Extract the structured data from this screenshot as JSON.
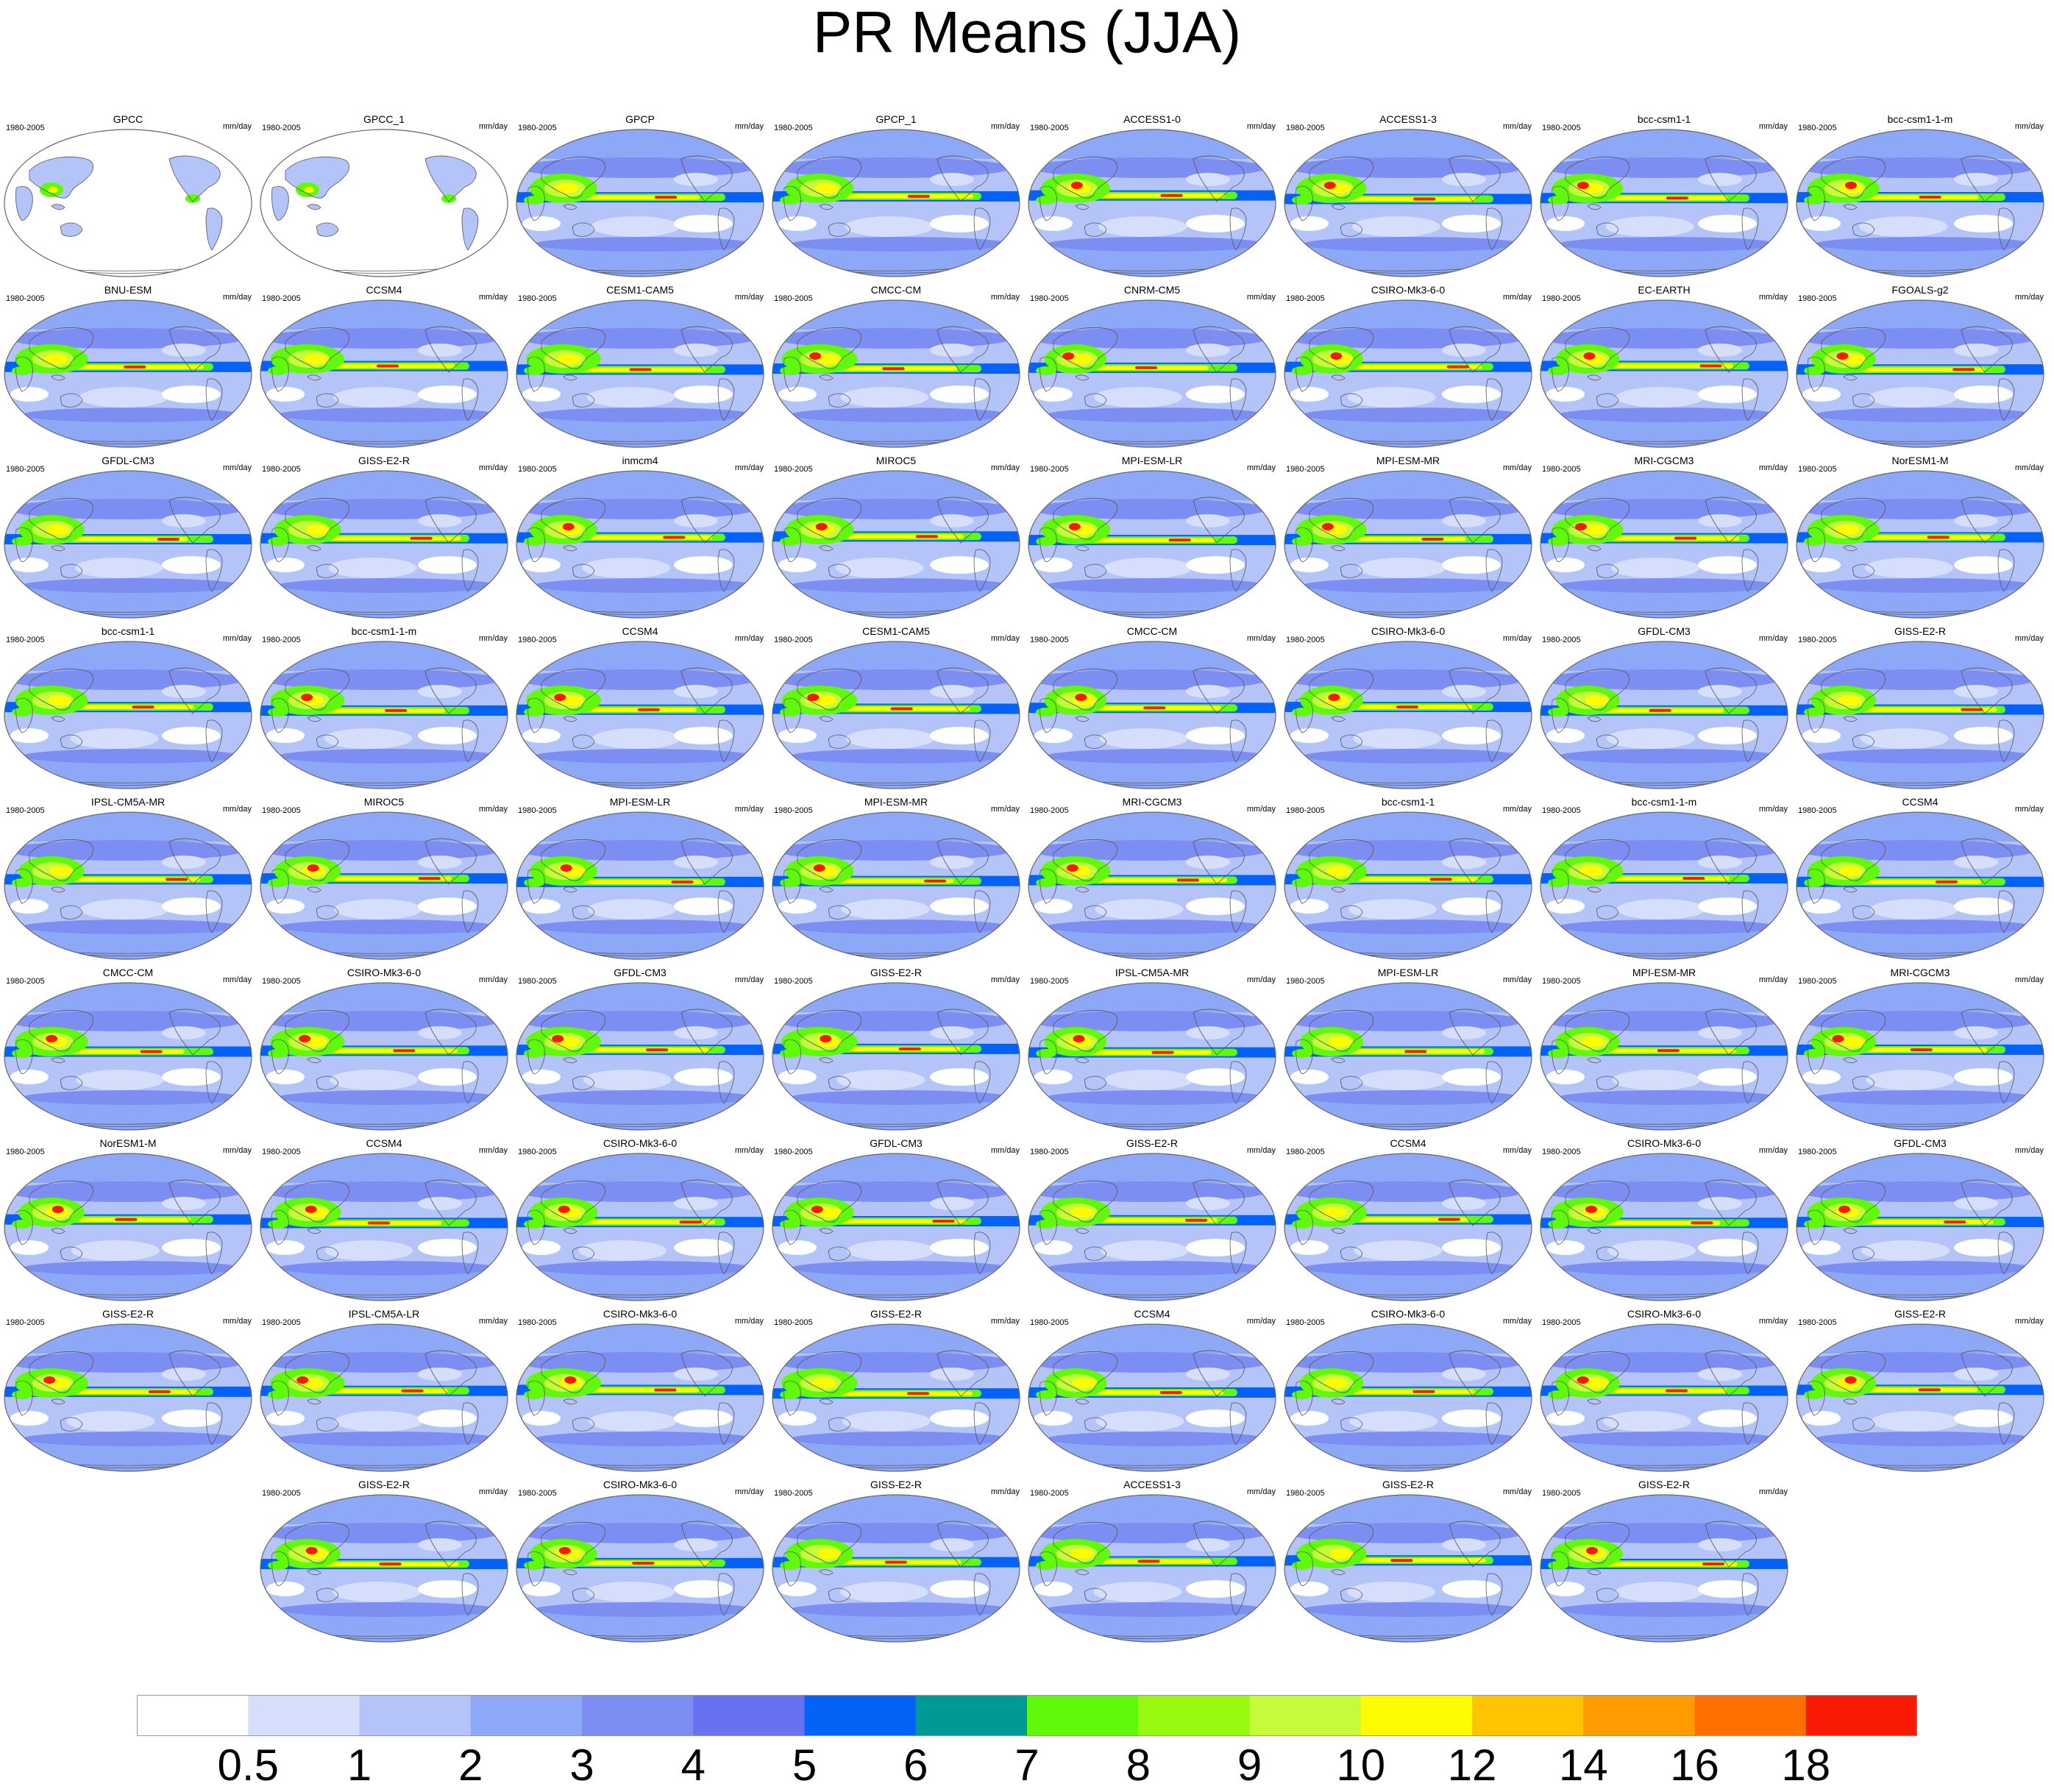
{
  "title": "PR Means (JJA)",
  "panel_period": "1980-2005",
  "panel_units": "mm/day",
  "panels": [
    {
      "name": "GPCC",
      "obs": "land"
    },
    {
      "name": "GPCC_1",
      "obs": "land"
    },
    {
      "name": "GPCP"
    },
    {
      "name": "GPCP_1"
    },
    {
      "name": "ACCESS1-0"
    },
    {
      "name": "ACCESS1-3"
    },
    {
      "name": "bcc-csm1-1"
    },
    {
      "name": "bcc-csm1-1-m"
    },
    {
      "name": "BNU-ESM"
    },
    {
      "name": "CCSM4"
    },
    {
      "name": "CESM1-CAM5"
    },
    {
      "name": "CMCC-CM"
    },
    {
      "name": "CNRM-CM5"
    },
    {
      "name": "CSIRO-Mk3-6-0"
    },
    {
      "name": "EC-EARTH"
    },
    {
      "name": "FGOALS-g2"
    },
    {
      "name": "GFDL-CM3"
    },
    {
      "name": "GISS-E2-R"
    },
    {
      "name": "inmcm4"
    },
    {
      "name": "MIROC5"
    },
    {
      "name": "MPI-ESM-LR"
    },
    {
      "name": "MPI-ESM-MR"
    },
    {
      "name": "MRI-CGCM3"
    },
    {
      "name": "NorESM1-M"
    },
    {
      "name": "bcc-csm1-1"
    },
    {
      "name": "bcc-csm1-1-m"
    },
    {
      "name": "CCSM4"
    },
    {
      "name": "CESM1-CAM5"
    },
    {
      "name": "CMCC-CM"
    },
    {
      "name": "CSIRO-Mk3-6-0"
    },
    {
      "name": "GFDL-CM3"
    },
    {
      "name": "GISS-E2-R"
    },
    {
      "name": "IPSL-CM5A-MR"
    },
    {
      "name": "MIROC5"
    },
    {
      "name": "MPI-ESM-LR"
    },
    {
      "name": "MPI-ESM-MR"
    },
    {
      "name": "MRI-CGCM3"
    },
    {
      "name": "bcc-csm1-1"
    },
    {
      "name": "bcc-csm1-1-m"
    },
    {
      "name": "CCSM4"
    },
    {
      "name": "CMCC-CM"
    },
    {
      "name": "CSIRO-Mk3-6-0"
    },
    {
      "name": "GFDL-CM3"
    },
    {
      "name": "GISS-E2-R"
    },
    {
      "name": "IPSL-CM5A-MR"
    },
    {
      "name": "MPI-ESM-LR"
    },
    {
      "name": "MPI-ESM-MR"
    },
    {
      "name": "MRI-CGCM3"
    },
    {
      "name": "NorESM1-M"
    },
    {
      "name": "CCSM4"
    },
    {
      "name": "CSIRO-Mk3-6-0"
    },
    {
      "name": "GFDL-CM3"
    },
    {
      "name": "GISS-E2-R"
    },
    {
      "name": "CCSM4"
    },
    {
      "name": "CSIRO-Mk3-6-0"
    },
    {
      "name": "GFDL-CM3"
    },
    {
      "name": "GISS-E2-R"
    },
    {
      "name": "IPSL-CM5A-LR"
    },
    {
      "name": "CSIRO-Mk3-6-0"
    },
    {
      "name": "GISS-E2-R"
    },
    {
      "name": "CCSM4"
    },
    {
      "name": "CSIRO-Mk3-6-0"
    },
    {
      "name": "CSIRO-Mk3-6-0"
    },
    {
      "name": "GISS-E2-R"
    },
    {
      "name": "GISS-E2-R"
    },
    {
      "name": "CSIRO-Mk3-6-0"
    },
    {
      "name": "GISS-E2-R"
    },
    {
      "name": "ACCESS1-3"
    },
    {
      "name": "GISS-E2-R"
    },
    {
      "name": "GISS-E2-R"
    }
  ],
  "colorbar": {
    "labels": [
      "0.5",
      "1",
      "2",
      "3",
      "4",
      "5",
      "6",
      "7",
      "8",
      "9",
      "10",
      "12",
      "14",
      "16",
      "18"
    ],
    "colors": [
      "#ffffff",
      "#d5defa",
      "#b4c4f8",
      "#8ca8f7",
      "#7d8ef2",
      "#6872f0",
      "#0462f7",
      "#009a96",
      "#61f90b",
      "#99f810",
      "#c6fb3a",
      "#fffc02",
      "#ffc400",
      "#fe9b00",
      "#fe7000",
      "#f91a05"
    ]
  },
  "map_palette": {
    "outline": "#666666",
    "coast": "#555555",
    "dry": "#ffffff",
    "ocean_low": "#d5defa",
    "ocean_mid": "#b4c4f8",
    "ocean_high": "#8ca8f7",
    "ocean_wet": "#7d8ef2",
    "storm": "#0462f7",
    "wet": "#61f90b",
    "wetter": "#c6fb3a",
    "heavy": "#fffc02",
    "peak": "#fe9b00",
    "extreme": "#f91a05"
  }
}
